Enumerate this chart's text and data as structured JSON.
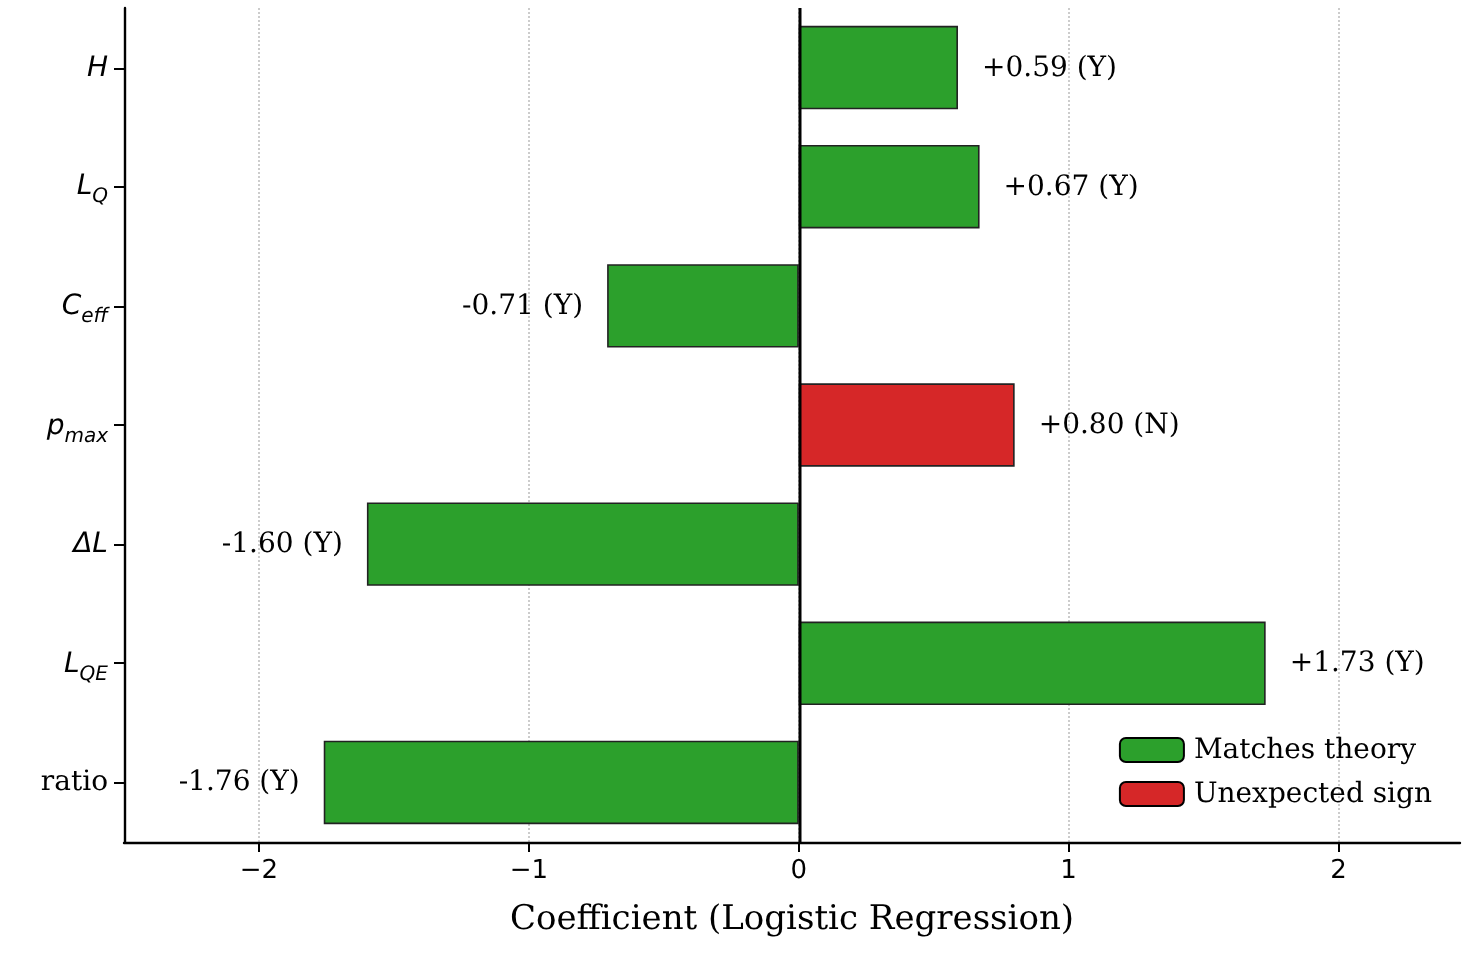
{
  "chart_data": {
    "type": "bar",
    "orientation": "horizontal",
    "stacked": true,
    "xlabel": "Coefficient (Logistic Regression)",
    "categories": [
      "H",
      "L$_{Q}$",
      "C$_{eff}$",
      "p$_{max}$",
      "ΔL",
      "L$_{QE}$",
      "ratio"
    ],
    "series": [
      {
        "name": "Matches theory",
        "color": "#2ca02c",
        "values": [
          0.59,
          0.67,
          -0.71,
          null,
          -1.6,
          1.73,
          -1.76
        ],
        "value_labels": [
          "+0.59 (Y)",
          "+0.67 (Y)",
          "-0.71 (Y)",
          null,
          "-1.60 (Y)",
          "+1.73 (Y)",
          "-1.76 (Y)"
        ]
      },
      {
        "name": "Unexpected sign",
        "color": "#d62728",
        "values": [
          null,
          null,
          null,
          0.8,
          null,
          null,
          null
        ],
        "value_labels": [
          null,
          null,
          null,
          "+0.80 (N)",
          null,
          null,
          null
        ]
      }
    ],
    "xlim": [
      -2.5,
      2.45
    ],
    "xticks": [
      {
        "value": -2,
        "label": "−2"
      },
      {
        "value": -1,
        "label": "−1"
      },
      0,
      1,
      2
    ],
    "ref_lines": [
      {
        "axis": "x",
        "value": 0,
        "color": "#000000"
      }
    ],
    "grid": "x",
    "legend": "bottom right"
  }
}
